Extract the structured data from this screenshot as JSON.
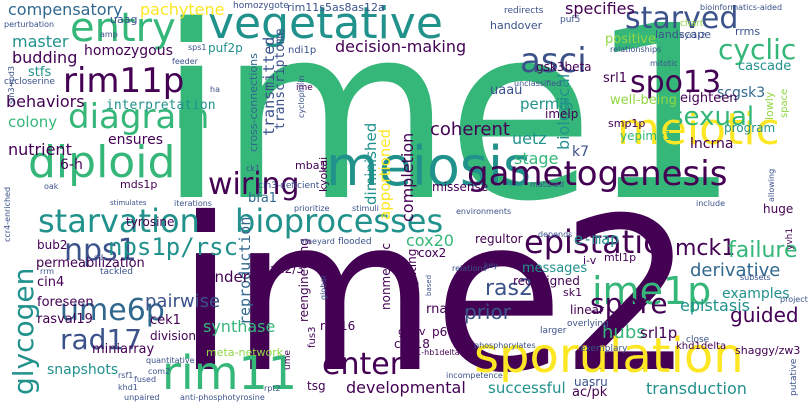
{
  "colors": {
    "background": "#ffffff",
    "dark_purple": "#440154",
    "indigo": "#3b528b",
    "slate_blue": "#31688e",
    "teal": "#21918c",
    "green": "#35b779",
    "lime": "#90d743",
    "yellow": "#fde725"
  },
  "words": {
    "ime1": "ime1",
    "ime2": "ime2",
    "vegetative": "vegetative",
    "meiosis": "meiosis",
    "meiotic": "meiotic",
    "sporulation": "sporulation",
    "gametogenesis": "gametogenesis",
    "rim11": "rim11",
    "diploid": "diploid",
    "starvation": "starvation",
    "bioprocesses": "bioprocesses",
    "epistatic": "epistatic",
    "ime1p": "ime1p",
    "rim11p": "rim11p",
    "diagram": "diagram",
    "entry": "entry",
    "asci": "asci",
    "spo13": "spo13",
    "sexual": "sexual",
    "starved": "starved",
    "cyclic": "cyclic",
    "wiring": "wiring",
    "glycogen": "glycogen",
    "ume6p": "ume6p",
    "nps1": "nps1",
    "nps1p_rsc": "nps1p/rsc",
    "spore": "spore",
    "enter": "enter",
    "rad17": "rad17",
    "mck1": "mck1",
    "failure": "failure",
    "e_map": "e-map",
    "cox20": "cox20",
    "reproduction": "reproduction",
    "transmitted": "transmitted",
    "ras2": "ras2",
    "prior": "prior",
    "pairwise": "pairwise",
    "derivative": "derivative",
    "examples": "examples",
    "epistasis": "epistasis",
    "hubs": "hubs",
    "srl1p": "srl1p",
    "guided": "guided",
    "undergo": "undergo",
    "synthase": "synthase",
    "coherent": "coherent",
    "decision_making": "decision-making",
    "compensatory": "compensatory",
    "pachytene": "pachytene",
    "specifies": "specifies",
    "master": "master",
    "budding": "budding",
    "homozygous": "homozygous",
    "nutrient": "nutrient",
    "ensures": "ensures",
    "biological": "biological",
    "completion": "completion",
    "stage": "stage",
    "k7": "k7",
    "apportioned": "apportioned",
    "diminished": "diminished",
    "interpretation": "interpretation",
    "behaviors": "behaviors",
    "colony": "colony",
    "stfs": "stfs",
    "six_h": "6-h",
    "uetz": "uetz",
    "permit": "permit",
    "scgsk3": "scgsk3",
    "program": "program",
    "yepime1": "yepime1",
    "lncrna": "lncrna",
    "eighteen": "eighteen",
    "well_being": "well-being",
    "srl1": "srl1",
    "gsk3beta": "gsk3beta",
    "cascade": "cascade",
    "positive": "positive",
    "landscape": "landscape",
    "rrms": "rrms",
    "handover": "handover",
    "redirects": "redirects",
    "puf5": "puf5",
    "chart": "chart",
    "cyr1_2": "cyr1-2",
    "bioinformatics_aided": "bioinformatics-aided",
    "rim11s5as8as12a": "rim11s5as8as12a",
    "homozygote": "homozygote",
    "uaag": "uaag",
    "puf2p": "puf2p",
    "ndi1p": "ndi1p",
    "transcriptome": "transcriptome",
    "cross_connections": "cross-connections",
    "uaau": "uaau",
    "imelp": "imelp",
    "smp1p": "smp1p",
    "mitotic": "mitotic",
    "relationships": "relationships",
    "unclassified": "unclassified",
    "lowly": "lowly",
    "space": "space",
    "missense": "missense",
    "mds1p": "mds1p",
    "mba1": "mba1",
    "kyokai": "kyokai",
    "iterations": "iterations",
    "bfa1": "bfa1",
    "cln3_deficient": "cln3-deficient",
    "tyrosine": "tyrosine",
    "bub2": "bub2",
    "permeabilization": "permeabilization",
    "cin4": "cin4",
    "foreseen": "foreseen",
    "rasval19": "rasval19",
    "cek1": "cek1",
    "division": "division",
    "miniarray": "miniarray",
    "snapshots": "snapshots",
    "meta_network": "meta-network",
    "rim16": "rim16",
    "reengineering": "reengineering",
    "pan2_3": "pan2/3",
    "nonmeiotic": "nonmeiotic",
    "highlighting": "highlighting",
    "rnas": "rnas",
    "g19v": "g19v",
    "p60": "p60",
    "cox18": "cox18",
    "tsg": "tsg",
    "uasru": "uasru",
    "ac_pk": "ac/pk",
    "developmental": "developmental",
    "successful": "successful",
    "transduction": "transduction",
    "shaggy_zw3": "shaggy/zw3",
    "khd1delta": "khd1delta",
    "regultor": "regultor",
    "messages": "messages",
    "redesigned": "redesigned",
    "i_v": "i-v",
    "mtl1p": "mtl1p",
    "sk1": "sk1",
    "linear": "linear",
    "huge": "huge",
    "overlying": "overlying",
    "subsets": "subsets",
    "exemplary": "exemplary",
    "larger": "larger",
    "close": "close",
    "phosphorylates": "phosphorylates",
    "ht1_hb1delta": "ht1-hb1delta",
    "anti_phosphotyrosine": "anti-phosphotyrosine",
    "unpaired": "unpaired",
    "quantitative": "quantitative",
    "cov4_enriched": "ccr4-enriched",
    "sin3_rpd3": "sin3-rpd3",
    "cycloserine": "cycloserine",
    "perturbation": "perturbation",
    "sps1": "sps1",
    "amp": "amp",
    "feeder": "feeder",
    "ha": "ha",
    "oak": "oak",
    "ime": "ime",
    "cyclophilin": "cyclophilin",
    "matured": "matured",
    "environments": "environments",
    "prioritize": "prioritize",
    "stimuli": "stimuli",
    "vineyard": "vineyard",
    "flooded": "flooded",
    "fus3": "fus3",
    "cox2": "cox2",
    "global": "global",
    "include": "include",
    "allowing": "allowing",
    "yvh1": "yvh1",
    "key": "key",
    "relations": "relations",
    "depends": "depends",
    "project": "project",
    "putative": "putative",
    "rpt2": "rpt2",
    "rsf1": "rsf1",
    "khd1": "khd1",
    "com2": "com2",
    "incompetence": "incompetence",
    "stimulates": "stimulates",
    "sd": "sd",
    "ck1": "ck1",
    "fused": "fused",
    "rrm": "rrm",
    "tackled": "tackled",
    "ume": "ume",
    "based": "based"
  }
}
